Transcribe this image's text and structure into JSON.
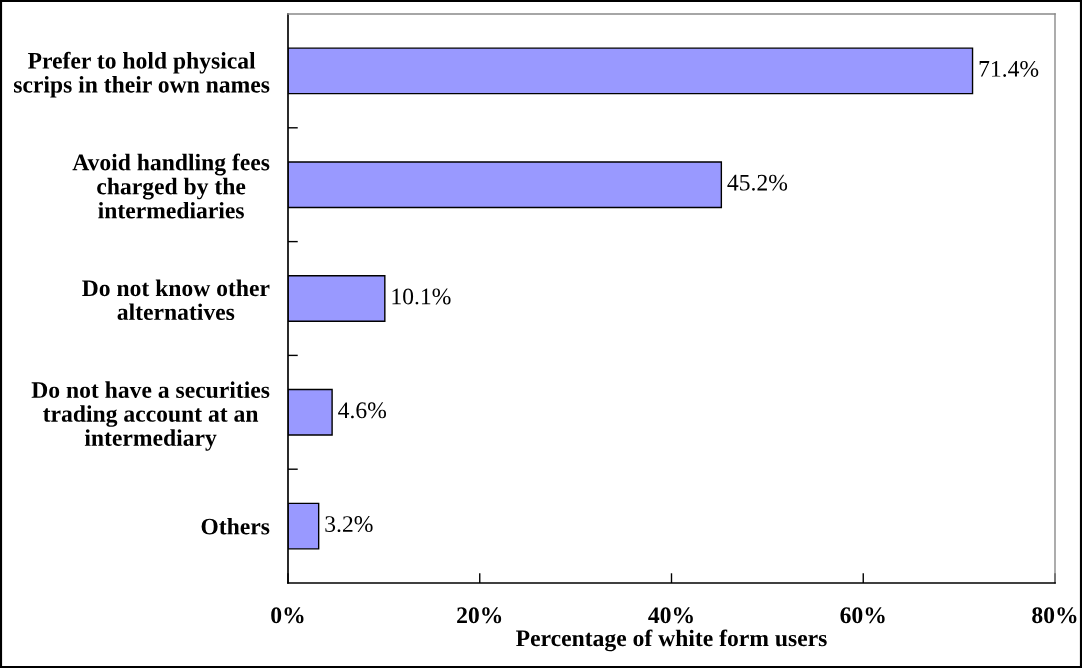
{
  "chart_data": {
    "type": "bar",
    "orientation": "horizontal",
    "categories": [
      "Prefer to hold physical\nscrips in their own names",
      "Avoid handling fees\ncharged by the\nintermediaries",
      "Do not know other\nalternatives",
      "Do not have a securities\ntrading account at an\nintermediary",
      "Others"
    ],
    "values": [
      71.4,
      45.2,
      10.1,
      4.6,
      3.2
    ],
    "value_labels": [
      "71.4%",
      "45.2%",
      "10.1%",
      "4.6%",
      "3.2%"
    ],
    "color": "#9999ff",
    "xlabel": "Percentage of white form users",
    "xlim": [
      0,
      80
    ],
    "xticks": [
      {
        "value": 0,
        "label": "0%"
      },
      {
        "value": 20,
        "label": "20%"
      },
      {
        "value": 40,
        "label": "40%"
      },
      {
        "value": 60,
        "label": "60%"
      },
      {
        "value": 80,
        "label": "80%"
      }
    ],
    "grid": false,
    "legend": false
  }
}
